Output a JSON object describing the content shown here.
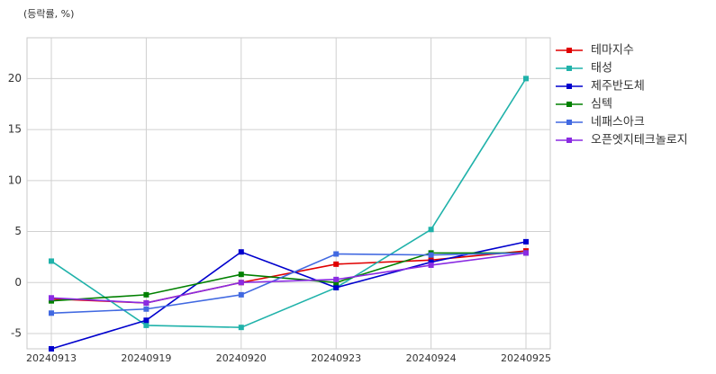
{
  "chart_data": {
    "type": "line",
    "title": "(등락률, %)",
    "categories": [
      "20240913",
      "20240919",
      "20240920",
      "20240923",
      "20240924",
      "20240925"
    ],
    "series": [
      {
        "name": "테마지수",
        "color": "#e00000",
        "values": [
          -1.6,
          -2.0,
          0.0,
          1.8,
          2.2,
          3.1
        ]
      },
      {
        "name": "태성",
        "color": "#20b2aa",
        "values": [
          2.1,
          -4.2,
          -4.4,
          -0.5,
          5.2,
          20.0
        ]
      },
      {
        "name": "제주반도체",
        "color": "#0000cd",
        "values": [
          -6.5,
          -3.7,
          3.0,
          -0.5,
          2.0,
          4.0
        ]
      },
      {
        "name": "심텍",
        "color": "#008000",
        "values": [
          -1.8,
          -1.2,
          0.8,
          0.0,
          2.9,
          2.9
        ]
      },
      {
        "name": "네패스아크",
        "color": "#4169e1",
        "values": [
          -3.0,
          -2.6,
          -1.2,
          2.8,
          2.7,
          2.9
        ]
      },
      {
        "name": "오픈엣지테크놀로지",
        "color": "#8a2be2",
        "values": [
          -1.5,
          -2.0,
          0.0,
          0.3,
          1.7,
          2.9
        ]
      }
    ],
    "ylim": [
      -6.5,
      24
    ],
    "yticks": [
      -5,
      0,
      5,
      10,
      15,
      20
    ],
    "grid": true
  }
}
